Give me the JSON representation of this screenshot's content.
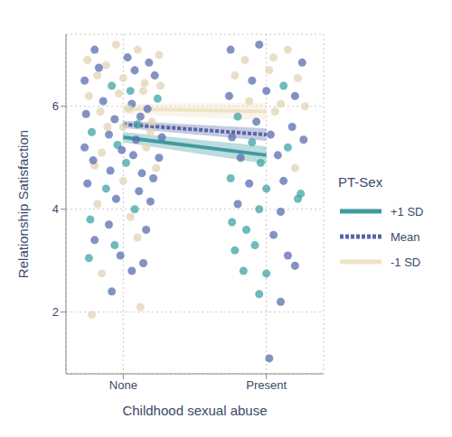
{
  "chart_data": {
    "type": "scatter",
    "x_label": "Childhood sexual abuse",
    "y_label": "Relationship Satisfaction",
    "legend_title": "PT-Sex",
    "legend": "right",
    "grid": true,
    "xlim": [
      -0.4,
      1.4
    ],
    "xticks": [
      {
        "value": 0,
        "label": "None"
      },
      {
        "value": 1,
        "label": "Present"
      }
    ],
    "ylim": [
      0.8,
      7.4
    ],
    "yticks": [
      2,
      4,
      6
    ],
    "points": {
      "type": "scatter",
      "marker": "circle",
      "x": [
        -0.25,
        -0.2,
        -0.12,
        -0.05,
        0.03,
        0.1,
        0.18,
        0.25,
        -0.27,
        -0.18,
        -0.08,
        0.0,
        0.08,
        0.15,
        0.22,
        -0.24,
        -0.14,
        -0.03,
        0.06,
        0.14,
        0.24,
        -0.26,
        -0.16,
        -0.06,
        0.04,
        0.12,
        0.2,
        -0.22,
        -0.1,
        0.0,
        0.09,
        0.19,
        0.27,
        -0.27,
        -0.15,
        -0.04,
        0.07,
        0.16,
        0.25,
        -0.2,
        -0.09,
        0.02,
        0.13,
        0.23,
        -0.25,
        -0.12,
        0.0,
        0.11,
        0.21,
        -0.18,
        -0.05,
        0.08,
        0.19,
        -0.23,
        -0.1,
        0.05,
        0.16,
        -0.2,
        -0.06,
        0.1,
        -0.24,
        -0.02,
        0.14,
        -0.15,
        0.06,
        -0.08,
        0.12,
        -0.22,
        -0.17,
        0.05,
        -0.11,
        0.17,
        -0.01,
        0.26,
        -0.21,
        0.1,
        0.75,
        0.85,
        0.95,
        1.05,
        1.15,
        1.25,
        0.78,
        0.9,
        1.02,
        1.12,
        1.22,
        0.74,
        0.88,
        1.0,
        1.1,
        1.2,
        1.27,
        0.8,
        0.93,
        1.06,
        1.18,
        0.76,
        0.9,
        1.03,
        1.15,
        1.26,
        0.82,
        0.96,
        1.08,
        1.2,
        0.75,
        0.88,
        1.0,
        1.12,
        1.24,
        0.8,
        0.95,
        1.1,
        1.22,
        0.76,
        0.86,
        1.05,
        0.78,
        0.92,
        1.15,
        0.84,
        1.0,
        1.2,
        0.95,
        1.1,
        1.02
      ],
      "values": [
        6.9,
        7.1,
        6.8,
        7.2,
        6.95,
        7.1,
        6.85,
        7.0,
        6.5,
        6.6,
        6.4,
        6.55,
        6.7,
        6.45,
        6.6,
        6.2,
        6.1,
        6.25,
        6.05,
        6.3,
        6.15,
        5.85,
        5.9,
        5.75,
        5.95,
        5.8,
        5.7,
        5.5,
        5.45,
        5.6,
        5.35,
        5.5,
        5.4,
        5.2,
        5.1,
        5.25,
        5.05,
        5.2,
        5.0,
        4.85,
        4.75,
        4.9,
        4.7,
        4.8,
        4.5,
        4.4,
        4.55,
        4.35,
        4.6,
        4.1,
        4.2,
        4.0,
        4.15,
        3.8,
        3.7,
        3.85,
        3.6,
        3.4,
        3.3,
        3.45,
        3.05,
        3.1,
        2.95,
        2.75,
        2.8,
        2.4,
        2.1,
        1.95,
        6.75,
        6.3,
        5.6,
        5.95,
        5.15,
        6.4,
        4.95,
        5.65,
        7.1,
        6.9,
        7.2,
        6.95,
        7.1,
        6.85,
        6.6,
        6.5,
        6.7,
        6.4,
        6.55,
        6.2,
        6.1,
        6.3,
        6.05,
        6.2,
        6.0,
        5.8,
        5.7,
        5.9,
        5.6,
        5.4,
        5.3,
        5.45,
        5.2,
        5.35,
        5.0,
        4.9,
        5.05,
        4.8,
        4.6,
        4.5,
        4.4,
        4.55,
        4.3,
        4.1,
        4.0,
        3.95,
        4.2,
        3.75,
        3.6,
        3.5,
        3.2,
        3.3,
        3.1,
        2.8,
        2.75,
        2.9,
        2.35,
        2.2,
        1.1
      ],
      "colors": [
        "#e2d4b3",
        "#5a6db0",
        "#e2d4b3",
        "#e2d4b3",
        "#5a6db0",
        "#e2d4b3",
        "#5a6db0",
        "#e2d4b3",
        "#5a6db0",
        "#e2d4b3",
        "#3fa3a5",
        "#e2d4b3",
        "#5a6db0",
        "#e2d4b3",
        "#5a6db0",
        "#e2d4b3",
        "#5a6db0",
        "#e2d4b3",
        "#5a6db0",
        "#e2d4b3",
        "#3fa3a5",
        "#5a6db0",
        "#e2d4b3",
        "#5a6db0",
        "#e2d4b3",
        "#5a6db0",
        "#e2d4b3",
        "#3fa3a5",
        "#5a6db0",
        "#e2d4b3",
        "#5a6db0",
        "#e2d4b3",
        "#5a6db0",
        "#5a6db0",
        "#e2d4b3",
        "#3fa3a5",
        "#5a6db0",
        "#e2d4b3",
        "#5a6db0",
        "#e2d4b3",
        "#5a6db0",
        "#3fa3a5",
        "#5a6db0",
        "#e2d4b3",
        "#5a6db0",
        "#3fa3a5",
        "#e2d4b3",
        "#5a6db0",
        "#5a6db0",
        "#e2d4b3",
        "#5a6db0",
        "#3fa3a5",
        "#5a6db0",
        "#3fa3a5",
        "#5a6db0",
        "#e2d4b3",
        "#5a6db0",
        "#5a6db0",
        "#3fa3a5",
        "#e2d4b3",
        "#3fa3a5",
        "#5a6db0",
        "#5a6db0",
        "#e2d4b3",
        "#5a6db0",
        "#5a6db0",
        "#e2d4b3",
        "#e2d4b3",
        "#5a6db0",
        "#3fa3a5",
        "#e2d4b3",
        "#5a6db0",
        "#5a6db0",
        "#e2d4b3",
        "#5a6db0",
        "#3fa3a5",
        "#5a6db0",
        "#e2d4b3",
        "#5a6db0",
        "#e2d4b3",
        "#e2d4b3",
        "#5a6db0",
        "#e2d4b3",
        "#5a6db0",
        "#e2d4b3",
        "#3fa3a5",
        "#e2d4b3",
        "#5a6db0",
        "#e2d4b3",
        "#5a6db0",
        "#e2d4b3",
        "#5a6db0",
        "#e2d4b3",
        "#3fa3a5",
        "#5a6db0",
        "#e2d4b3",
        "#5a6db0",
        "#5a6db0",
        "#3fa3a5",
        "#5a6db0",
        "#3fa3a5",
        "#5a6db0",
        "#5a6db0",
        "#3fa3a5",
        "#5a6db0",
        "#e2d4b3",
        "#3fa3a5",
        "#5a6db0",
        "#3fa3a5",
        "#5a6db0",
        "#3fa3a5",
        "#5a6db0",
        "#3fa3a5",
        "#5a6db0",
        "#3fa3a5",
        "#3fa3a5",
        "#3fa3a5",
        "#5a6db0",
        "#3fa3a5",
        "#3fa3a5",
        "#5a6db0",
        "#3fa3a5",
        "#3fa3a5",
        "#5a6db0",
        "#3fa3a5",
        "#5a6db0",
        "#5a6db0"
      ]
    },
    "series": [
      {
        "name": "+1 SD",
        "type": "line",
        "color": "#3f9ba0",
        "line_style": "solid",
        "x": [
          0,
          1
        ],
        "values": [
          5.4,
          5.05
        ],
        "ci_lower": [
          5.3,
          4.88
        ],
        "ci_upper": [
          5.5,
          5.22
        ]
      },
      {
        "name": "Mean",
        "type": "line",
        "color": "#5566a6",
        "line_style": "dashed",
        "x": [
          0,
          1
        ],
        "values": [
          5.65,
          5.45
        ],
        "ci_lower": [
          5.58,
          5.33
        ],
        "ci_upper": [
          5.72,
          5.57
        ]
      },
      {
        "name": "-1 SD",
        "type": "line",
        "color": "#efe3c6",
        "line_style": "solid",
        "x": [
          0,
          1
        ],
        "values": [
          5.95,
          5.9
        ],
        "ci_lower": [
          5.85,
          5.73
        ],
        "ci_upper": [
          6.05,
          6.07
        ]
      }
    ]
  }
}
